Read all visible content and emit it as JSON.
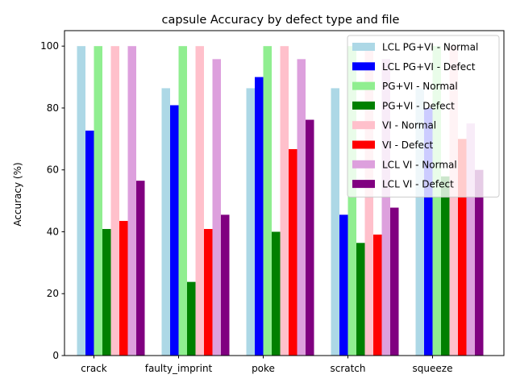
{
  "chart_data": {
    "type": "bar",
    "title": "capsule Accuracy by defect type and file",
    "xlabel": "",
    "ylabel": "Accuracy (%)",
    "ylim": [
      0,
      105
    ],
    "yticks": [
      0,
      20,
      40,
      60,
      80,
      100
    ],
    "grid": false,
    "legend_position": "top-right",
    "categories": [
      "crack",
      "faulty_imprint",
      "poke",
      "scratch",
      "squeeze"
    ],
    "series": [
      {
        "name": "LCL PG+VI - Normal",
        "color": "#add8e6",
        "values": [
          100,
          86.4,
          86.4,
          86.4,
          86.4
        ]
      },
      {
        "name": "LCL PG+VI - Defect",
        "color": "#0000ff",
        "values": [
          72.7,
          80.9,
          90.0,
          45.5,
          80.0
        ]
      },
      {
        "name": "PG+VI - Normal",
        "color": "#90ee90",
        "values": [
          100,
          100,
          100,
          100,
          100
        ]
      },
      {
        "name": "PG+VI - Defect",
        "color": "#008000",
        "values": [
          40.9,
          23.8,
          40.0,
          36.4,
          57.9
        ]
      },
      {
        "name": "VI - Normal",
        "color": "#ffc0cb",
        "values": [
          100,
          100,
          100,
          100,
          100
        ]
      },
      {
        "name": "VI - Defect",
        "color": "#ff0000",
        "values": [
          43.5,
          40.9,
          66.7,
          39.1,
          70.0
        ]
      },
      {
        "name": "LCL VI - Normal",
        "color": "#dda0dd",
        "values": [
          100,
          95.8,
          95.8,
          95.8,
          75.0
        ]
      },
      {
        "name": "LCL VI - Defect",
        "color": "#800080",
        "values": [
          56.5,
          45.5,
          76.2,
          47.8,
          60.0
        ]
      }
    ]
  }
}
